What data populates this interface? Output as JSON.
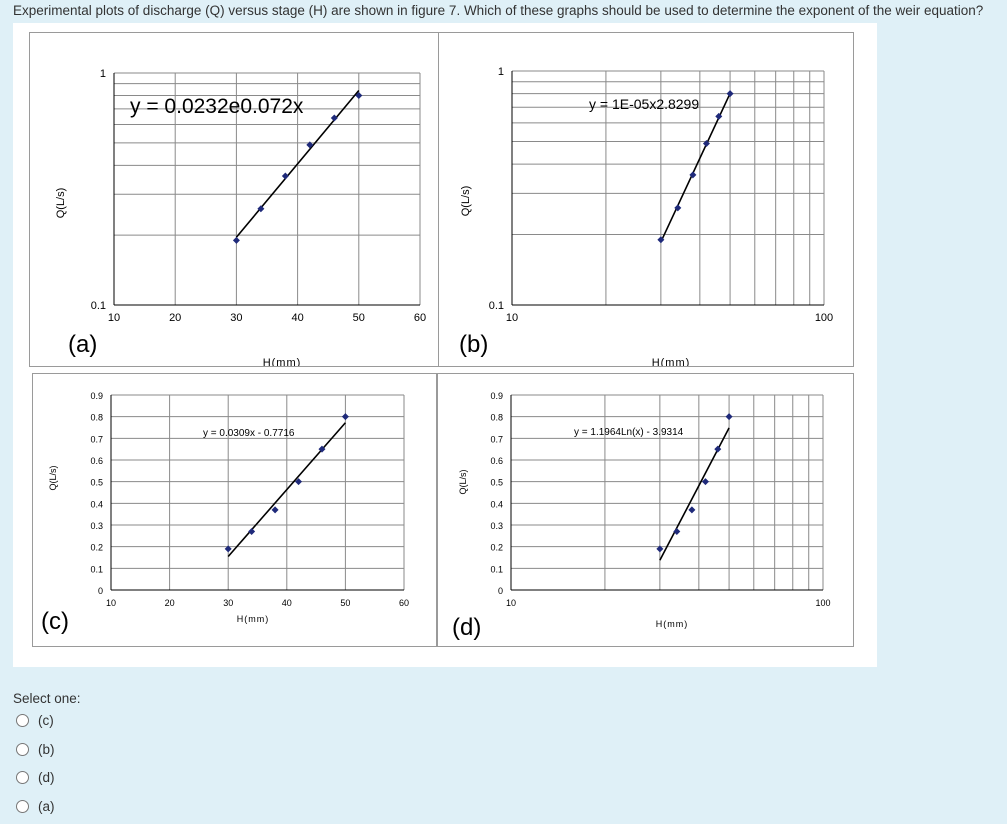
{
  "question": "Experimental plots of discharge (Q) versus stage (H) are shown in figure 7. Which of these graphs should be used to determine the exponent of the weir equation?",
  "select_label": "Select one:",
  "options": [
    "(c)",
    "(b)",
    "(d)",
    "(a)"
  ],
  "chart_data": [
    {
      "type": "scatter",
      "panel_label": "(a)",
      "xlabel": "H(mm)",
      "ylabel": "Q(L/s)",
      "xscale": "linear",
      "yscale": "log",
      "xlim": [
        10,
        60
      ],
      "ylim": [
        0.1,
        1
      ],
      "xticks": [
        "10",
        "20",
        "30",
        "40",
        "50",
        "60"
      ],
      "yticks": [
        "0.1",
        "1"
      ],
      "annotation": "y = 0.0232e0.072x",
      "trendline": "exponential",
      "series": [
        {
          "x": [
            30,
            34,
            38,
            42,
            46,
            50
          ],
          "y": [
            0.19,
            0.26,
            0.36,
            0.49,
            0.64,
            0.8
          ]
        }
      ]
    },
    {
      "type": "scatter",
      "panel_label": "(b)",
      "xlabel": "H(mm)",
      "ylabel": "Q(L/s)",
      "xscale": "log",
      "yscale": "log",
      "xlim": [
        10,
        100
      ],
      "ylim": [
        0.1,
        1
      ],
      "xticks": [
        "10",
        "100"
      ],
      "yticks": [
        "0.1",
        "1"
      ],
      "annotation": "y = 1E-05x2.8299",
      "trendline": "power",
      "series": [
        {
          "x": [
            30,
            34,
            38,
            42,
            46,
            50
          ],
          "y": [
            0.19,
            0.26,
            0.36,
            0.49,
            0.64,
            0.8
          ]
        }
      ]
    },
    {
      "type": "scatter",
      "panel_label": "(c)",
      "xlabel": "H(mm)",
      "ylabel": "Q(L/s)",
      "xscale": "linear",
      "yscale": "linear",
      "xlim": [
        10,
        60
      ],
      "ylim": [
        0,
        0.9
      ],
      "xticks": [
        "10",
        "20",
        "30",
        "40",
        "50",
        "60"
      ],
      "yticks": [
        "0",
        "0.1",
        "0.2",
        "0.3",
        "0.4",
        "0.5",
        "0.6",
        "0.7",
        "0.8",
        "0.9"
      ],
      "annotation": "y = 0.0309x - 0.7716",
      "trendline": "linear",
      "series": [
        {
          "x": [
            30,
            34,
            38,
            42,
            46,
            50
          ],
          "y": [
            0.19,
            0.27,
            0.37,
            0.5,
            0.65,
            0.8
          ]
        }
      ]
    },
    {
      "type": "scatter",
      "panel_label": "(d)",
      "xlabel": "H(mm)",
      "ylabel": "Q(L/s)",
      "xscale": "log",
      "yscale": "linear",
      "xlim": [
        10,
        100
      ],
      "ylim": [
        0,
        0.9
      ],
      "xticks": [
        "10",
        "100"
      ],
      "yticks": [
        "0",
        "0.1",
        "0.2",
        "0.3",
        "0.4",
        "0.5",
        "0.6",
        "0.7",
        "0.8",
        "0.9"
      ],
      "annotation": "y = 1.1964Ln(x) - 3.9314",
      "trendline": "logarithmic",
      "series": [
        {
          "x": [
            30,
            34,
            38,
            42,
            46,
            50
          ],
          "y": [
            0.19,
            0.27,
            0.37,
            0.5,
            0.65,
            0.8
          ]
        }
      ]
    }
  ]
}
